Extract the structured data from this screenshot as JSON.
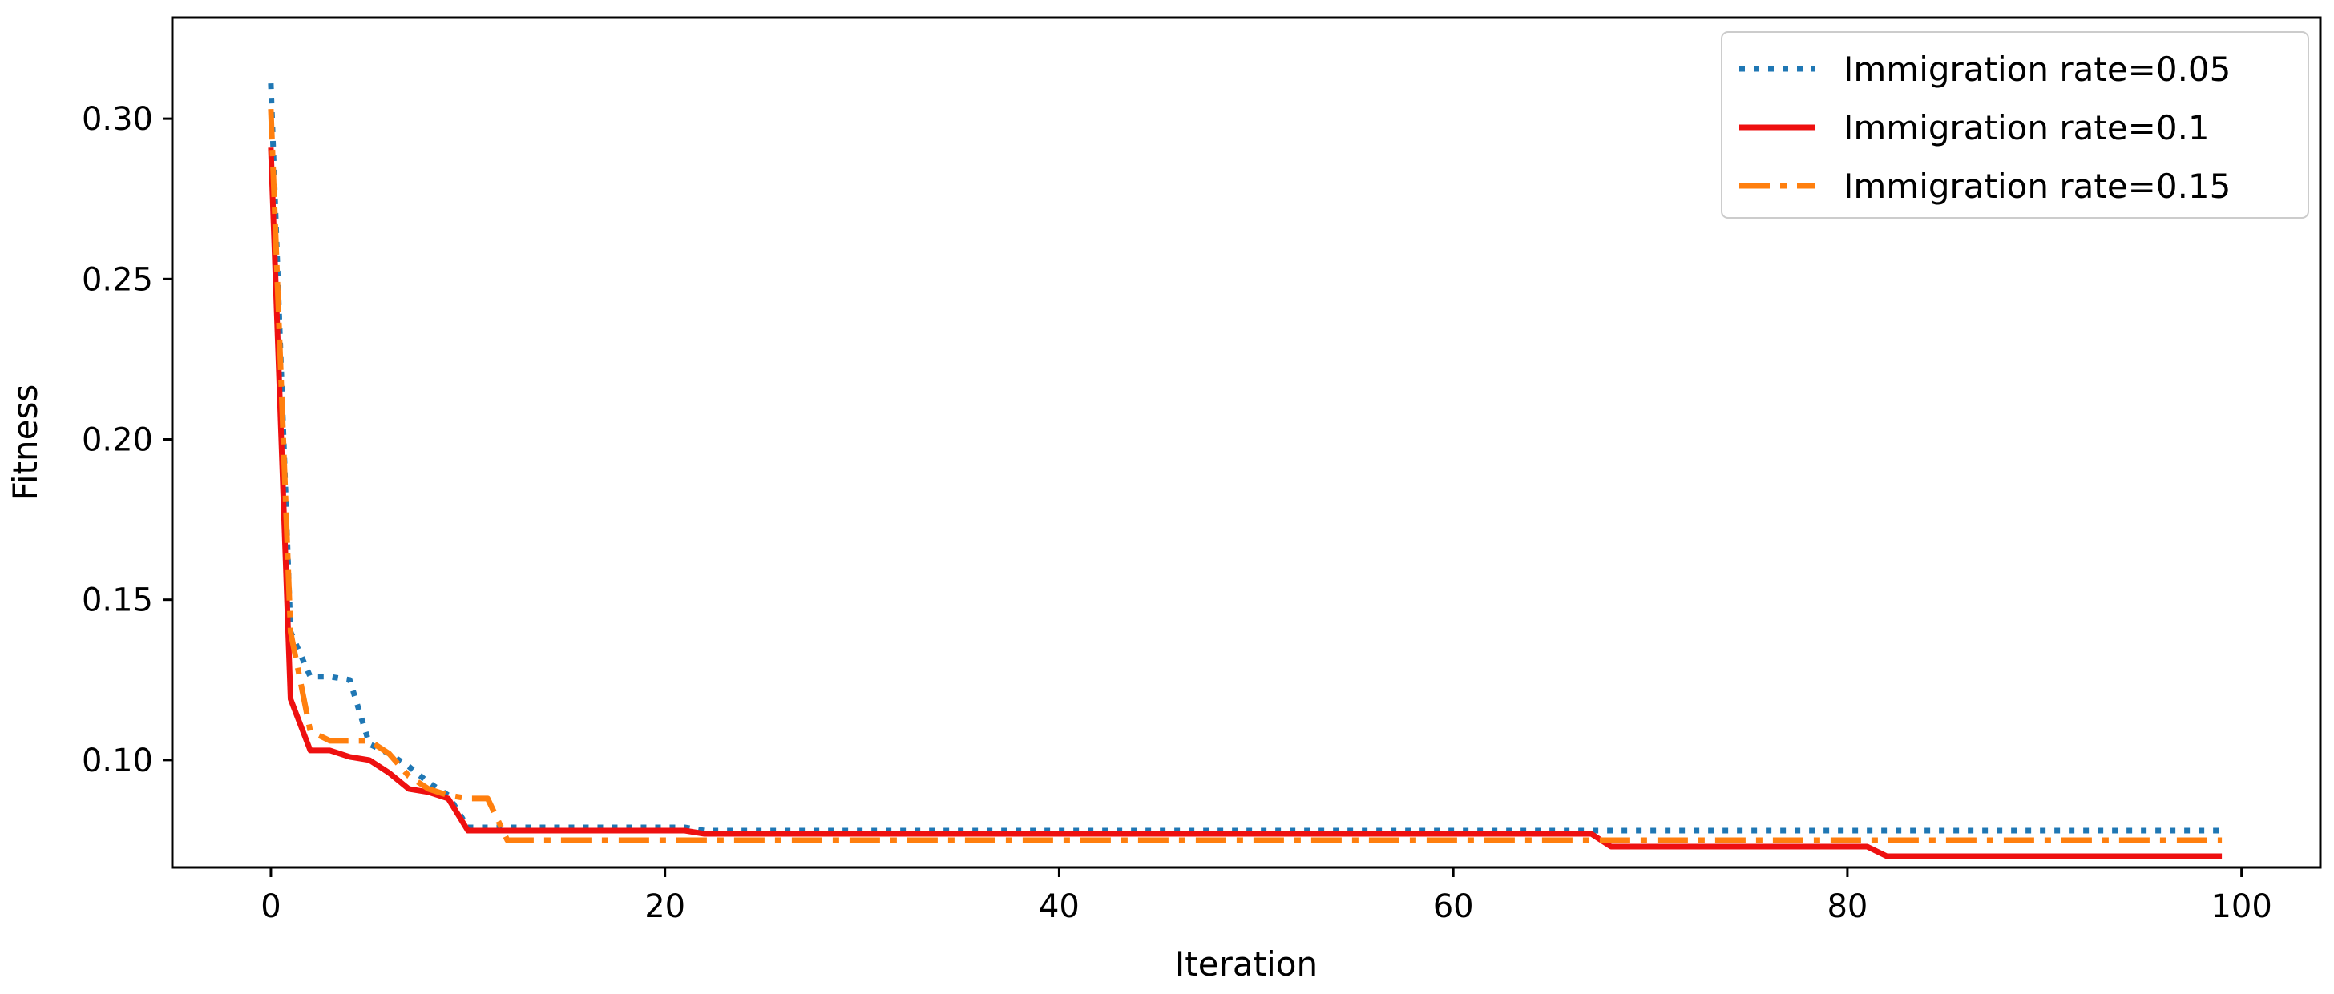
{
  "chart_data": {
    "type": "line",
    "title": "",
    "xlabel": "Iteration",
    "ylabel": "Fitness",
    "xlim": [
      -5,
      104
    ],
    "ylim": [
      0.0665,
      0.3315
    ],
    "xticks": [
      0,
      20,
      40,
      60,
      80,
      100
    ],
    "yticks": [
      0.1,
      0.15,
      0.2,
      0.25,
      0.3
    ],
    "xtick_labels": [
      "0",
      "20",
      "40",
      "60",
      "80",
      "100"
    ],
    "ytick_labels": [
      "0.10",
      "0.15",
      "0.20",
      "0.25",
      "0.30"
    ],
    "grid": false,
    "legend_position": "top-right",
    "series": [
      {
        "name": "Immigration rate=0.05",
        "color": "#1f77b4",
        "style": "dotted",
        "points": [
          [
            0,
            0.311
          ],
          [
            1,
            0.14
          ],
          [
            2,
            0.126
          ],
          [
            3,
            0.126
          ],
          [
            4,
            0.125
          ],
          [
            5,
            0.105
          ],
          [
            6,
            0.102
          ],
          [
            7,
            0.098
          ],
          [
            8,
            0.093
          ],
          [
            9,
            0.089
          ],
          [
            10,
            0.079
          ],
          [
            11,
            0.079
          ],
          [
            21,
            0.079
          ],
          [
            22,
            0.078
          ],
          [
            99,
            0.078
          ]
        ]
      },
      {
        "name": "Immigration rate=0.1",
        "color": "#ee1010",
        "style": "solid",
        "points": [
          [
            0,
            0.291
          ],
          [
            1,
            0.119
          ],
          [
            2,
            0.103
          ],
          [
            3,
            0.103
          ],
          [
            4,
            0.101
          ],
          [
            5,
            0.1
          ],
          [
            6,
            0.096
          ],
          [
            7,
            0.091
          ],
          [
            8,
            0.09
          ],
          [
            9,
            0.088
          ],
          [
            10,
            0.078
          ],
          [
            21,
            0.078
          ],
          [
            22,
            0.077
          ],
          [
            67,
            0.077
          ],
          [
            68,
            0.073
          ],
          [
            81,
            0.073
          ],
          [
            82,
            0.07
          ],
          [
            99,
            0.07
          ]
        ]
      },
      {
        "name": "Immigration rate=0.15",
        "color": "#ff7f0e",
        "style": "dashdot",
        "points": [
          [
            0,
            0.303
          ],
          [
            1,
            0.14
          ],
          [
            2,
            0.109
          ],
          [
            3,
            0.106
          ],
          [
            4,
            0.106
          ],
          [
            5,
            0.106
          ],
          [
            6,
            0.102
          ],
          [
            7,
            0.095
          ],
          [
            8,
            0.091
          ],
          [
            9,
            0.089
          ],
          [
            10,
            0.088
          ],
          [
            11,
            0.088
          ],
          [
            12,
            0.075
          ],
          [
            67,
            0.075
          ],
          [
            68,
            0.075
          ],
          [
            99,
            0.075
          ]
        ]
      }
    ]
  }
}
